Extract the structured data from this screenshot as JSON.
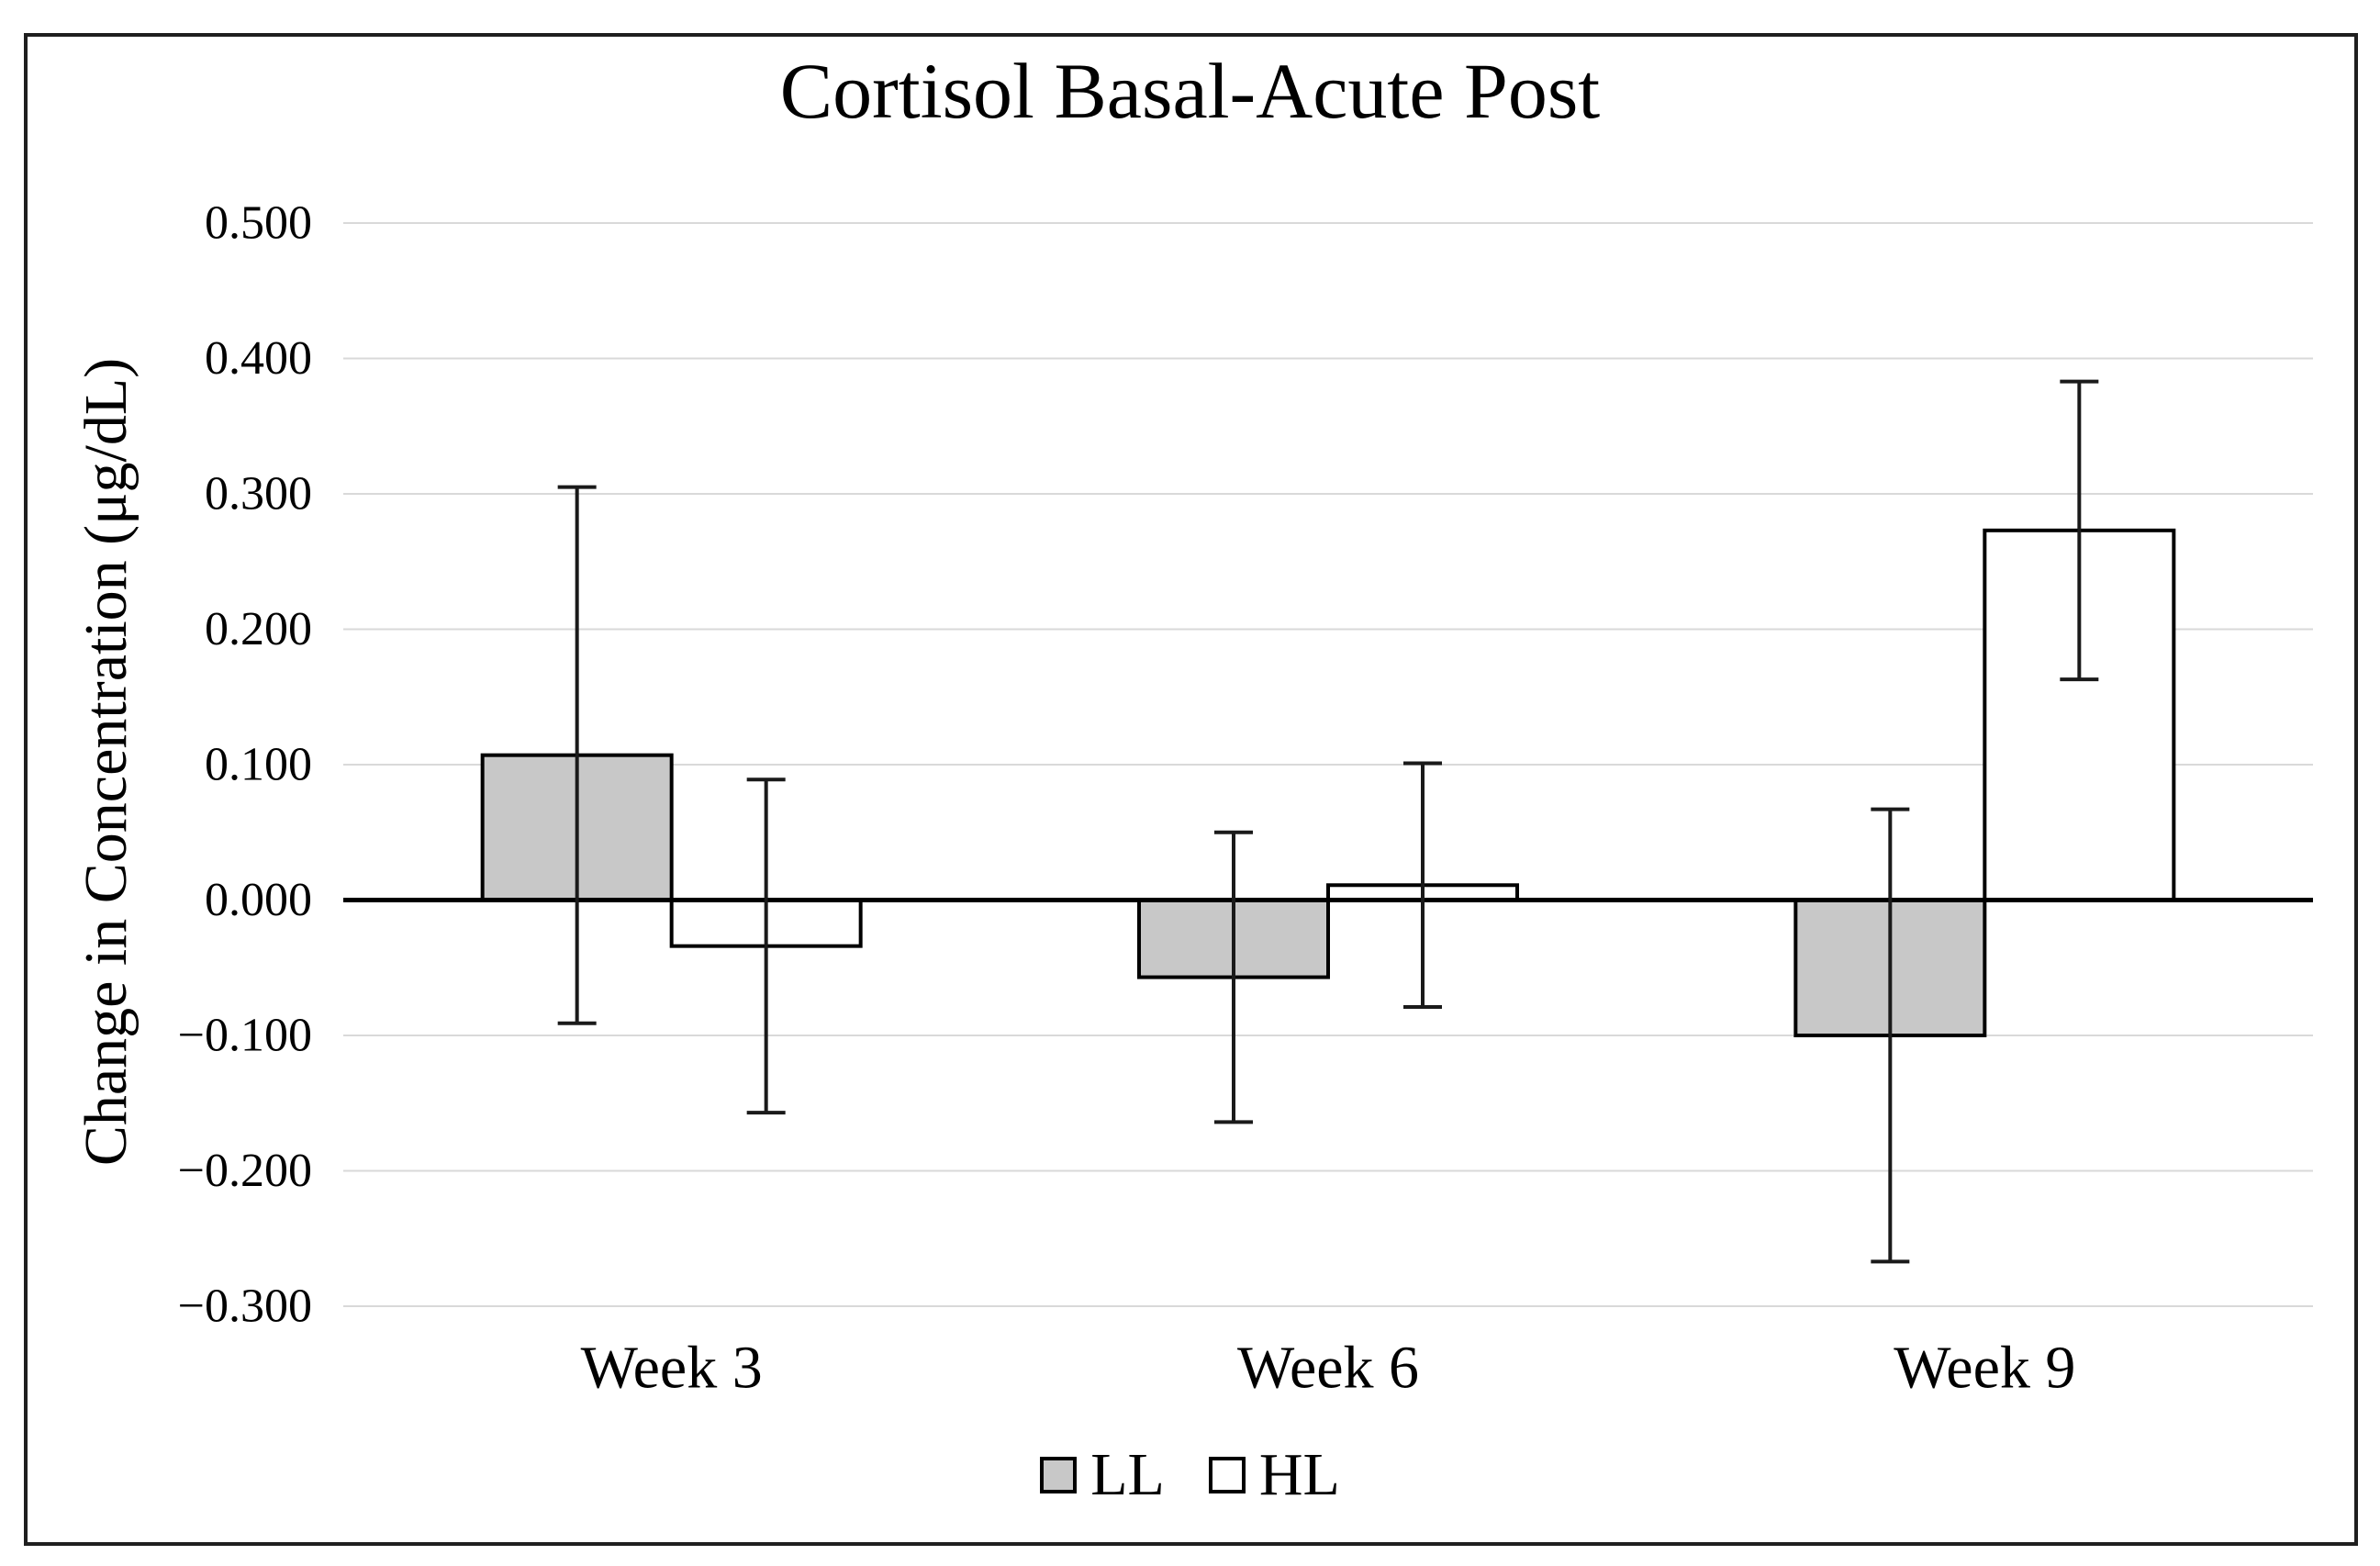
{
  "figure": {
    "title": "Cortisol Basal-Acute Post",
    "y_axis_label": "Change in Concentration (μg/dL)"
  },
  "legend": [
    {
      "label": "LL",
      "fill": "#c8c8c8"
    },
    {
      "label": "HL",
      "fill": "#ffffff"
    }
  ],
  "chart_data": {
    "type": "bar",
    "title": "Cortisol Basal-Acute Post",
    "xlabel": "",
    "ylabel": "Change in Concentration (μg/dL)",
    "categories": [
      "Week 3",
      "Week 6",
      "Week 9"
    ],
    "series": [
      {
        "name": "LL",
        "fill": "#c8c8c8",
        "values": [
          0.107,
          -0.057,
          -0.1
        ],
        "errors": [
          0.198,
          0.107,
          0.167
        ]
      },
      {
        "name": "HL",
        "fill": "#ffffff",
        "values": [
          -0.034,
          0.011,
          0.273
        ],
        "errors": [
          0.123,
          0.09,
          0.11
        ]
      }
    ],
    "ylim": [
      -0.3,
      0.5
    ],
    "ytick_step": 0.1,
    "ytick_labels": [
      "0.500",
      "0.400",
      "0.300",
      "0.200",
      "0.100",
      "0.000",
      "−0.100",
      "−0.200",
      "−0.300"
    ],
    "grid": true,
    "error_bars": true,
    "legend_position": "bottom",
    "colors": {
      "grid": "#d9d9d9",
      "zero_axis": "#000000",
      "bar_border": "#000000",
      "error_bar": "#1a1a1a",
      "frame_border": "#1f1f1f"
    }
  }
}
